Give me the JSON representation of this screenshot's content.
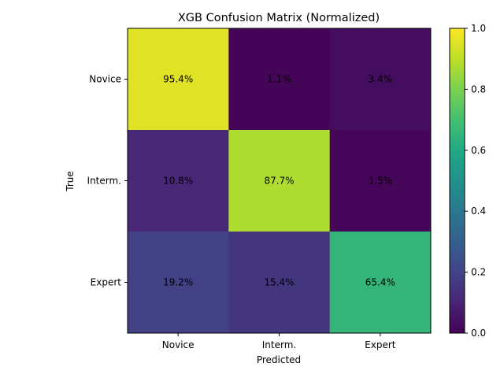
{
  "chart_data": {
    "type": "heatmap",
    "title": "XGB Confusion Matrix (Normalized)",
    "xlabel": "Predicted",
    "ylabel": "True",
    "x_categories": [
      "Novice",
      "Interm.",
      "Expert"
    ],
    "y_categories": [
      "Novice",
      "Interm.",
      "Expert"
    ],
    "values": [
      [
        0.954,
        0.011,
        0.034
      ],
      [
        0.108,
        0.877,
        0.015
      ],
      [
        0.192,
        0.154,
        0.654
      ]
    ],
    "cell_labels": [
      [
        "95.4%",
        "1.1%",
        "3.4%"
      ],
      [
        "10.8%",
        "87.7%",
        "1.5%"
      ],
      [
        "19.2%",
        "15.4%",
        "65.4%"
      ]
    ],
    "colormap": "viridis",
    "vmin": 0.0,
    "vmax": 1.0,
    "colorbar_ticks": [
      "0.0",
      "0.2",
      "0.4",
      "0.6",
      "0.8",
      "1.0"
    ],
    "colorbar_tick_values": [
      0.0,
      0.2,
      0.4,
      0.6,
      0.8,
      1.0
    ],
    "grid": false
  }
}
